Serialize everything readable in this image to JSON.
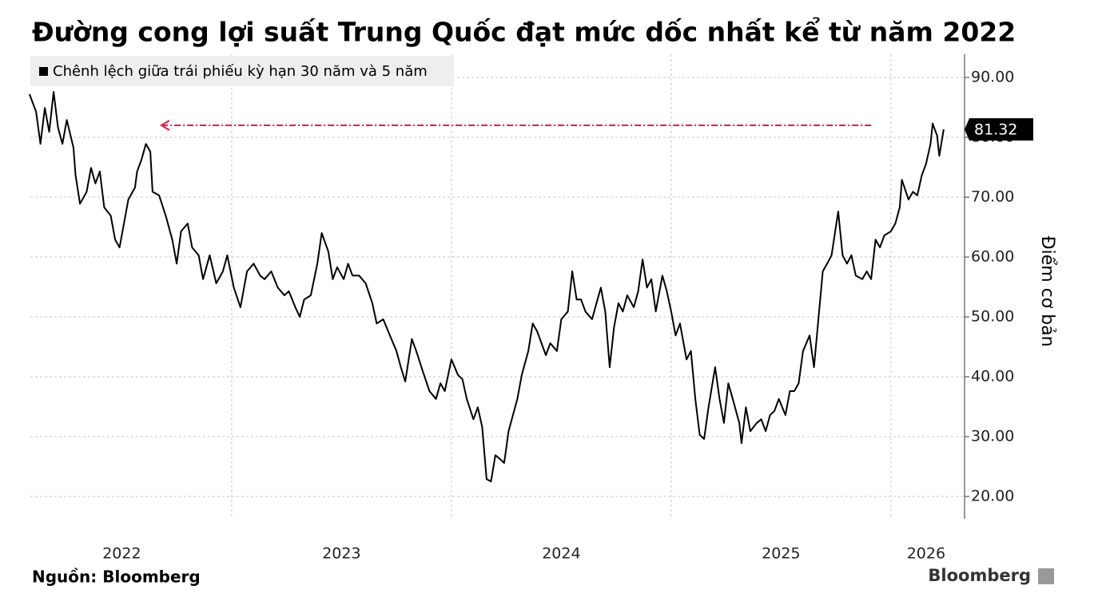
{
  "chart_data": {
    "type": "line",
    "title": "Đường cong lợi suất Trung Quốc đạt mức dốc nhất kể từ năm 2022",
    "ylabel": "Điểm cơ bản",
    "source": "Nguồn: Bloomberg",
    "logo": "Bloomberg",
    "x": [
      2022.08,
      2022.11,
      2022.13,
      2022.15,
      2022.17,
      2022.19,
      2022.21,
      2022.23,
      2022.25,
      2022.28,
      2022.29,
      2022.31,
      2022.34,
      2022.36,
      2022.38,
      2022.4,
      2022.42,
      2022.45,
      2022.47,
      2022.49,
      2022.51,
      2022.53,
      2022.56,
      2022.57,
      2022.59,
      2022.61,
      2022.63,
      2022.64,
      2022.67,
      2022.7,
      2022.73,
      2022.75,
      2022.77,
      2022.8,
      2022.82,
      2022.85,
      2022.87,
      2022.9,
      2022.93,
      2022.96,
      2022.98,
      2023.01,
      2023.04,
      2023.07,
      2023.1,
      2023.13,
      2023.15,
      2023.18,
      2023.21,
      2023.24,
      2023.26,
      2023.29,
      2023.31,
      2023.33,
      2023.36,
      2023.39,
      2023.41,
      2023.44,
      2023.46,
      2023.48,
      2023.51,
      2023.53,
      2023.55,
      2023.58,
      2023.61,
      2023.64,
      2023.66,
      2023.69,
      2023.72,
      2023.75,
      2023.77,
      2023.79,
      2023.82,
      2023.84,
      2023.87,
      2023.9,
      2023.93,
      2023.95,
      2023.97,
      2024.0,
      2024.03,
      2024.05,
      2024.07,
      2024.1,
      2024.12,
      2024.14,
      2024.16,
      2024.18,
      2024.2,
      2024.22,
      2024.24,
      2024.26,
      2024.28,
      2024.3,
      2024.32,
      2024.35,
      2024.37,
      2024.39,
      2024.41,
      2024.43,
      2024.45,
      2024.48,
      2024.5,
      2024.53,
      2024.55,
      2024.57,
      2024.59,
      2024.61,
      2024.64,
      2024.66,
      2024.68,
      2024.7,
      2024.72,
      2024.74,
      2024.76,
      2024.78,
      2024.8,
      2024.83,
      2024.85,
      2024.87,
      2024.89,
      2024.91,
      2024.93,
      2024.96,
      2024.98,
      2025.0,
      2025.02,
      2025.04,
      2025.07,
      2025.09,
      2025.11,
      2025.13,
      2025.15,
      2025.17,
      2025.2,
      2025.22,
      2025.24,
      2025.26,
      2025.28,
      2025.31,
      2025.32,
      2025.34,
      2025.36,
      2025.39,
      2025.41,
      2025.43,
      2025.45,
      2025.47,
      2025.49,
      2025.52,
      2025.54,
      2025.56,
      2025.58,
      2025.6,
      2025.63,
      2025.65,
      2025.67,
      2025.69,
      2025.71,
      2025.73,
      2025.76,
      2025.78,
      2025.8,
      2025.82,
      2025.84,
      2025.87,
      2025.89,
      2025.91,
      2025.93,
      2025.95,
      2025.97,
      2026.0,
      2026.02,
      2026.04,
      2026.05,
      2026.08,
      2026.1,
      2026.12,
      2026.14,
      2026.16,
      2026.18,
      2026.19,
      2026.21,
      2026.22,
      2026.24
    ],
    "series": [
      {
        "name": "Chênh lệch giữa trái phiếu kỳ hạn 30 năm và 5 năm",
        "color": "#000000",
        "values": [
          87.2,
          84.3,
          78.9,
          84.9,
          80.9,
          87.6,
          81.6,
          78.9,
          82.9,
          78.3,
          73.6,
          68.9,
          70.9,
          74.9,
          72.3,
          74.3,
          68.3,
          66.9,
          62.9,
          61.6,
          65.6,
          69.6,
          71.6,
          74.3,
          76.3,
          78.9,
          77.6,
          70.9,
          70.3,
          66.9,
          62.9,
          58.9,
          64.3,
          65.6,
          61.6,
          60.3,
          56.3,
          60.3,
          55.6,
          57.6,
          60.3,
          54.9,
          51.6,
          57.6,
          58.9,
          56.9,
          56.3,
          57.6,
          54.9,
          53.6,
          54.3,
          51.6,
          50.0,
          52.9,
          53.6,
          58.9,
          64.0,
          60.9,
          56.3,
          58.3,
          56.3,
          58.9,
          56.9,
          56.9,
          55.6,
          52.3,
          48.9,
          49.6,
          46.9,
          44.3,
          41.6,
          39.2,
          46.3,
          44.3,
          40.9,
          37.6,
          36.3,
          38.9,
          37.6,
          42.9,
          40.3,
          39.6,
          36.3,
          32.9,
          34.9,
          31.6,
          22.9,
          22.5,
          26.9,
          26.3,
          25.6,
          30.9,
          33.6,
          36.3,
          40.3,
          44.3,
          48.9,
          47.6,
          45.6,
          43.6,
          45.6,
          44.3,
          49.6,
          50.9,
          57.6,
          52.9,
          52.9,
          50.9,
          49.6,
          52.3,
          54.9,
          50.9,
          41.6,
          48.3,
          52.3,
          50.9,
          53.6,
          51.6,
          54.3,
          59.6,
          54.9,
          56.3,
          50.9,
          56.9,
          54.3,
          50.9,
          46.9,
          48.9,
          42.9,
          44.3,
          36.3,
          30.3,
          29.6,
          34.9,
          41.6,
          36.3,
          32.3,
          38.9,
          36.3,
          32.3,
          28.9,
          34.9,
          30.9,
          32.3,
          32.9,
          30.9,
          33.6,
          34.3,
          36.3,
          33.6,
          37.6,
          37.6,
          38.9,
          44.3,
          46.9,
          41.6,
          49.6,
          57.6,
          58.9,
          60.3,
          67.6,
          60.3,
          58.9,
          60.3,
          56.9,
          56.3,
          57.6,
          56.3,
          62.9,
          61.6,
          63.6,
          64.3,
          65.6,
          68.3,
          72.9,
          69.6,
          70.9,
          70.3,
          73.6,
          75.6,
          78.9,
          82.3,
          80.3,
          76.9,
          81.32
        ]
      }
    ],
    "xlim": [
      2022.084,
      2026.335
    ],
    "xticks": [
      {
        "value": 2022.5,
        "label": "2022"
      },
      {
        "value": 2023.5,
        "label": "2023"
      },
      {
        "value": 2024.5,
        "label": "2024"
      },
      {
        "value": 2025.5,
        "label": "2025"
      },
      {
        "value": 2026.16,
        "label": "2026"
      }
    ],
    "x_gridlines": [
      2023,
      2024,
      2025,
      2026
    ],
    "ylim": [
      16.27,
      93.87
    ],
    "yticks": [
      {
        "value": 20,
        "label": "20.00"
      },
      {
        "value": 30,
        "label": "30.00"
      },
      {
        "value": 40,
        "label": "40.00"
      },
      {
        "value": 50,
        "label": "50.00"
      },
      {
        "value": 60,
        "label": "60.00"
      },
      {
        "value": 70,
        "label": "70.00"
      },
      {
        "value": 80,
        "label": "80.00"
      },
      {
        "value": 90,
        "label": "90.00"
      }
    ],
    "reference_arrow": {
      "y": 82.0,
      "x_from": 2025.91,
      "x_to": 2022.68,
      "color": "#e8194a"
    },
    "grid": true
  }
}
